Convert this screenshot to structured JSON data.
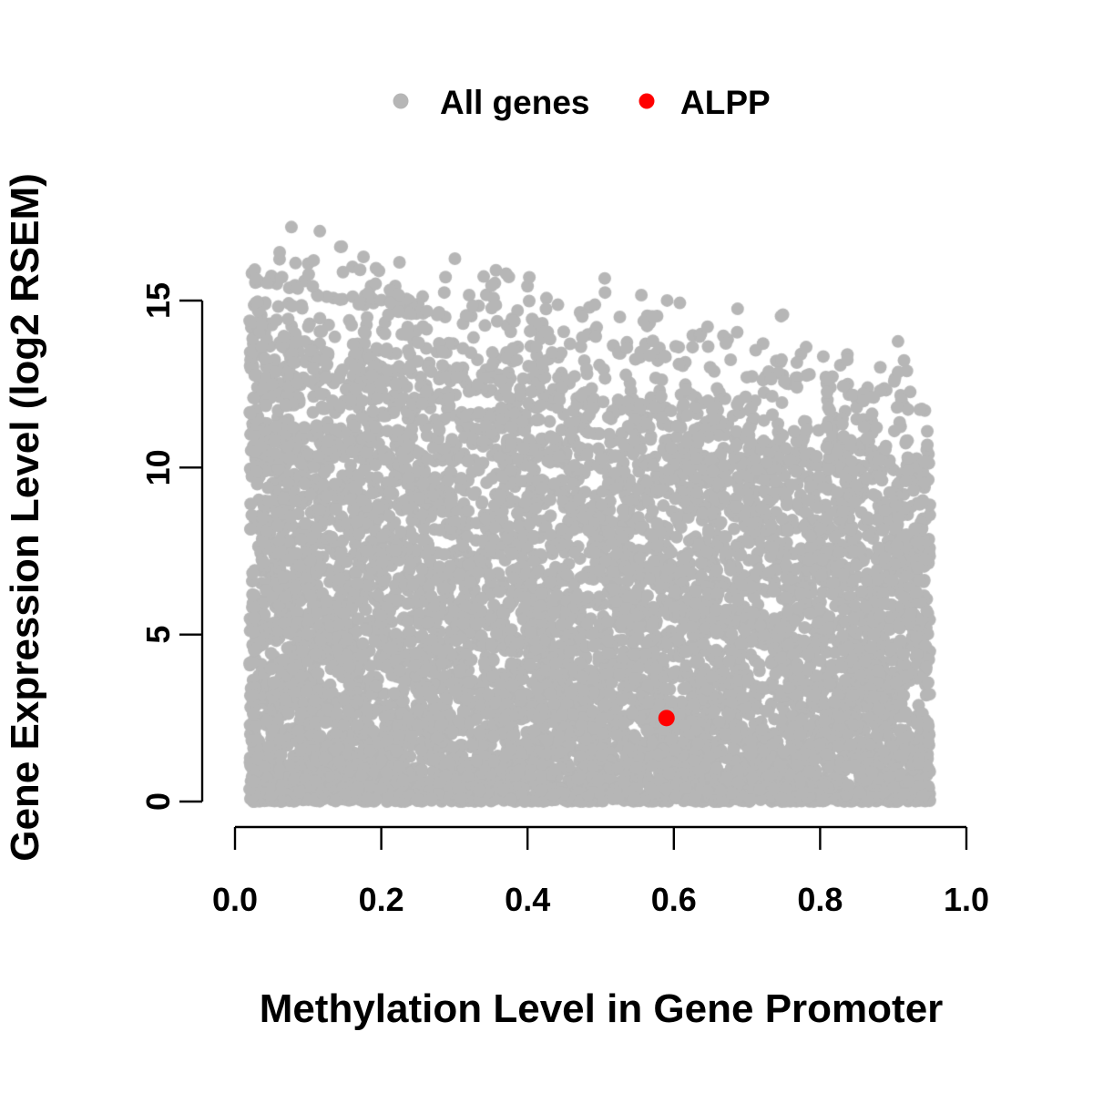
{
  "chart_data": {
    "type": "scatter",
    "title": "",
    "xlabel": "Methylation Level in Gene Promoter",
    "ylabel": "Gene Expression Level (log2 RSEM)",
    "xlim": [
      0,
      1
    ],
    "ylim": [
      0,
      15
    ],
    "xticks": [
      0.0,
      0.2,
      0.4,
      0.6,
      0.8,
      1.0
    ],
    "xtick_labels": [
      "0.0",
      "0.2",
      "0.4",
      "0.6",
      "0.8",
      "1.0"
    ],
    "yticks": [
      0,
      5,
      10,
      15
    ],
    "ytick_labels": [
      "0",
      "5",
      "10",
      "15"
    ],
    "grid": false,
    "legend": {
      "position": "top-center",
      "entries": [
        {
          "label": "All genes",
          "color": "#b6b6b6"
        },
        {
          "label": "ALPP",
          "color": "#ff0000"
        }
      ]
    },
    "highlight_point": {
      "name": "ALPP",
      "x": 0.59,
      "y": 2.5,
      "color": "#ff0000"
    },
    "all_genes_cloud": {
      "description": "Dense cloud of all genes: methylation spans ~0.02-0.95; expression spans 0 to ~17 at low methylation; upper envelope declines from ~15.5 at methylation 0 to ~12 at methylation 0.95; density concentrated toward expression 0",
      "n": 8000,
      "seed": 42,
      "x_range": [
        0.02,
        0.95
      ],
      "envelope": {
        "intercept": 15.6,
        "slope": -4.2
      },
      "y_max_outlier": 17.2,
      "color": "#b6b6b6",
      "point_radius": 7
    }
  }
}
